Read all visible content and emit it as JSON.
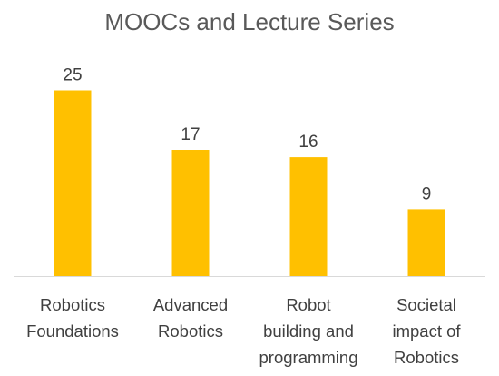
{
  "chart_data": {
    "type": "bar",
    "title": "MOOCs and Lecture Series",
    "categories": [
      [
        "Robotics",
        "Foundations"
      ],
      [
        "Advanced",
        "Robotics"
      ],
      [
        "Robot",
        "building and",
        "programming"
      ],
      [
        "Societal",
        "impact of",
        "Robotics"
      ]
    ],
    "values": [
      25,
      17,
      16,
      9
    ],
    "xlabel": "",
    "ylabel": "",
    "ylim": [
      0,
      28
    ],
    "grid": false,
    "legend": "none",
    "show_value_axis": false,
    "data_labels": true,
    "colors": {
      "bar": "#FFC000",
      "axis": "#D9D9D9",
      "text": "#404040",
      "title": "#595959"
    }
  }
}
